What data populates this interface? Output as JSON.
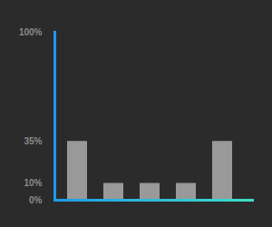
{
  "chart_data": {
    "type": "bar",
    "categories": [
      null,
      null,
      null,
      null,
      null
    ],
    "values": [
      35,
      10,
      10,
      10,
      35
    ],
    "color": "#999999",
    "ylim": [
      0,
      100
    ],
    "yticks": [
      {
        "value": 0,
        "label": "0%"
      },
      {
        "value": 10,
        "label": "10%"
      },
      {
        "value": 35,
        "label": "35%"
      },
      {
        "value": 100,
        "label": "100%"
      }
    ],
    "grid": false
  }
}
